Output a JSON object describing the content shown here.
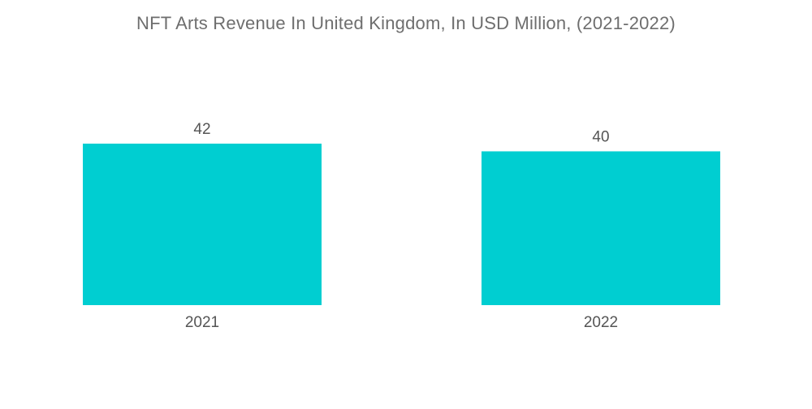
{
  "chart_data": {
    "type": "bar",
    "title": "NFT Arts Revenue In United Kingdom, In USD Million, (2021-2022)",
    "categories": [
      "2021",
      "2022"
    ],
    "values": [
      42,
      40
    ],
    "xlabel": "",
    "ylabel": "",
    "ylim": [
      0,
      42
    ],
    "grid": false,
    "legend": "none",
    "bar_color": "#00ced1"
  }
}
